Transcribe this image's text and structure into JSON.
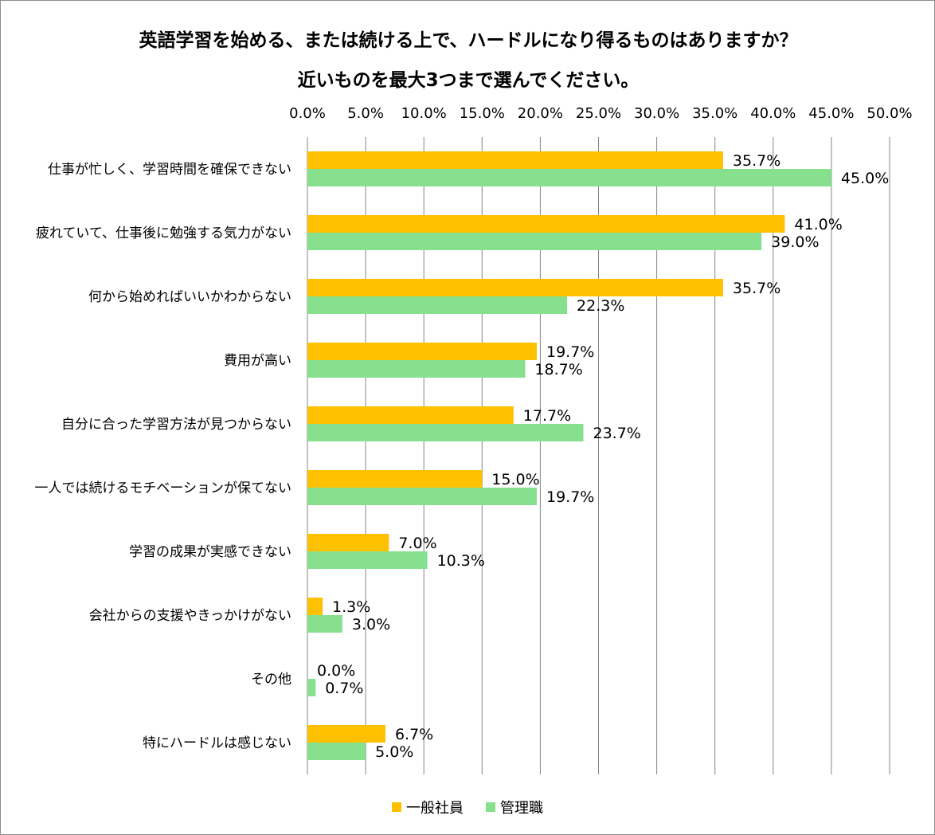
{
  "chart_data": {
    "type": "bar",
    "orientation": "horizontal",
    "title": "英語学習を始める、または続ける上で、ハードルになり得るものはありますか？",
    "subtitle": "近いものを最大3つまで選んでください。",
    "xlim": [
      0,
      50
    ],
    "x_ticks": [
      "0.0%",
      "5.0%",
      "10.0%",
      "15.0%",
      "20.0%",
      "25.0%",
      "30.0%",
      "35.0%",
      "40.0%",
      "45.0%",
      "50.0%"
    ],
    "x_tick_values": [
      0,
      5,
      10,
      15,
      20,
      25,
      30,
      35,
      40,
      45,
      50
    ],
    "x_axis_position": "top",
    "grid": true,
    "legend_position": "bottom",
    "categories": [
      "仕事が忙しく、学習時間を確保できない",
      "疲れていて、仕事後に勉強する気力がない",
      "何から始めればいいかわからない",
      "費用が高い",
      "自分に合った学習方法が見つからない",
      "一人では続けるモチベーションが保てない",
      "学習の成果が実感できない",
      "会社からの支援やきっかけがない",
      "その他",
      "特にハードルは感じない"
    ],
    "series": [
      {
        "name": "一般社員",
        "color": "#FFC000",
        "values": [
          35.7,
          41.0,
          35.7,
          19.7,
          17.7,
          15.0,
          7.0,
          1.3,
          0.0,
          6.7
        ],
        "labels": [
          "35.7%",
          "41.0%",
          "35.7%",
          "19.7%",
          "17.7%",
          "15.0%",
          "7.0%",
          "1.3%",
          "0.0%",
          "6.7%"
        ]
      },
      {
        "name": "管理職",
        "color": "#86E08E",
        "values": [
          45.0,
          39.0,
          22.3,
          18.7,
          23.7,
          19.7,
          10.3,
          3.0,
          0.7,
          5.0
        ],
        "labels": [
          "45.0%",
          "39.0%",
          "22.3%",
          "18.7%",
          "23.7%",
          "19.7%",
          "10.3%",
          "3.0%",
          "0.7%",
          "5.0%"
        ]
      }
    ]
  }
}
